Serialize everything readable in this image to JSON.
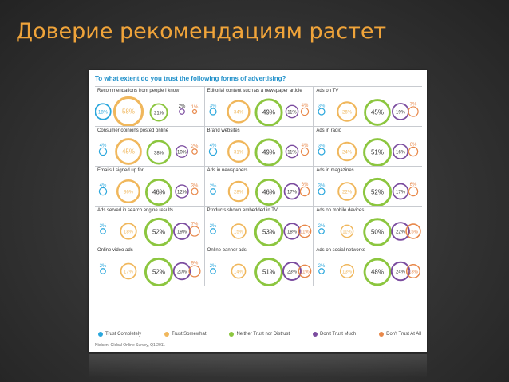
{
  "slide": {
    "title": "Доверие рекомендациям растет"
  },
  "colors": {
    "trust_completely": "#2aa7dd",
    "trust_somewhat": "#f0b75c",
    "neither": "#8cc63f",
    "dont_trust_much": "#7b4c9f",
    "dont_trust_at_all": "#e8884a"
  },
  "chart_data": {
    "type": "bubble",
    "title": "To what extent do you trust the following forms of advertising?",
    "legend": [
      {
        "key": "trust_completely",
        "label": "Trust Completely"
      },
      {
        "key": "trust_somewhat",
        "label": "Trust Somewhat"
      },
      {
        "key": "neither",
        "label": "Neither Trust nor Distrust"
      },
      {
        "key": "dont_trust_much",
        "label": "Don't Trust Much"
      },
      {
        "key": "dont_trust_at_all",
        "label": "Don't Trust At All"
      }
    ],
    "source": "Nielsen, Global Online Survey, Q1 2011",
    "categories": [
      {
        "name": "Recommendations from people I know",
        "values": [
          18,
          58,
          21,
          2,
          1
        ]
      },
      {
        "name": "Editorial content such as a newspaper article",
        "values": [
          3,
          34,
          49,
          11,
          4
        ]
      },
      {
        "name": "Ads on TV",
        "values": [
          3,
          26,
          45,
          19,
          7
        ]
      },
      {
        "name": "Consumer opinions posted online",
        "values": [
          4,
          45,
          38,
          10,
          2
        ]
      },
      {
        "name": "Brand websites",
        "values": [
          4,
          31,
          49,
          11,
          4
        ]
      },
      {
        "name": "Ads in radio",
        "values": [
          3,
          24,
          51,
          16,
          6
        ]
      },
      {
        "name": "Emails I signed up for",
        "values": [
          4,
          36,
          46,
          12,
          3
        ]
      },
      {
        "name": "Ads in newspapers",
        "values": [
          2,
          28,
          46,
          17,
          6
        ]
      },
      {
        "name": "Ads in magazines",
        "values": [
          3,
          22,
          52,
          17,
          6
        ]
      },
      {
        "name": "Ads served in search engine results",
        "values": [
          2,
          18,
          52,
          19,
          7
        ]
      },
      {
        "name": "Products shown embedded in TV",
        "values": [
          2,
          15,
          53,
          18,
          11
        ]
      },
      {
        "name": "Ads on mobile devices",
        "values": [
          2,
          11,
          50,
          22,
          15
        ]
      },
      {
        "name": "Online video ads",
        "values": [
          2,
          17,
          52,
          20,
          9
        ]
      },
      {
        "name": "Online banner ads",
        "values": [
          2,
          14,
          51,
          23,
          11
        ]
      },
      {
        "name": "Ads on social networks",
        "values": [
          2,
          13,
          48,
          24,
          13
        ]
      }
    ]
  }
}
